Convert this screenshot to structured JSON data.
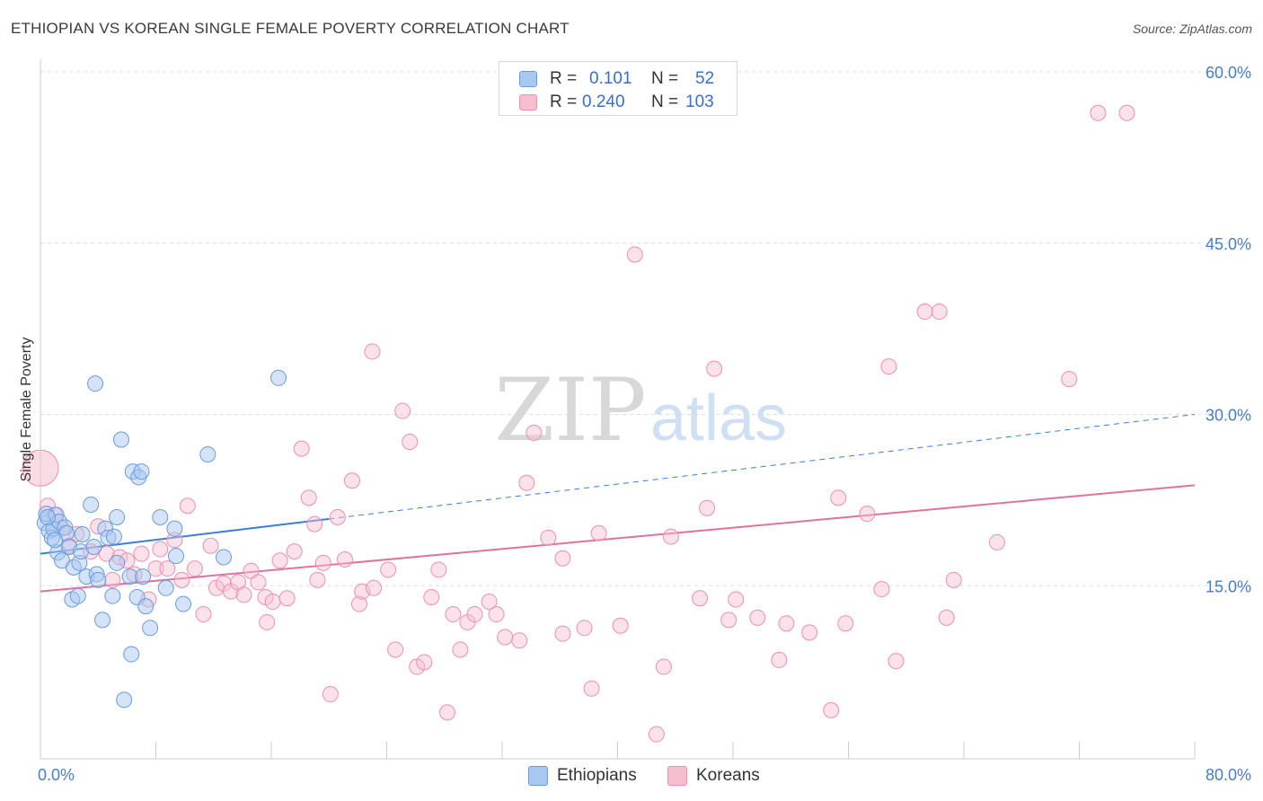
{
  "title": "ETHIOPIAN VS KOREAN SINGLE FEMALE POVERTY CORRELATION CHART",
  "source": "Source: ZipAtlas.com",
  "watermark": {
    "zip": "ZIP",
    "atlas": "atlas"
  },
  "stats": {
    "rows": [
      {
        "r_label": "R =",
        "r_value": "0.101",
        "n_label": "N =",
        "n_value": "52"
      },
      {
        "r_label": "R =",
        "r_value": "0.240",
        "n_label": "N =",
        "n_value": "103"
      }
    ]
  },
  "legend": {
    "items": [
      "Ethiopians",
      "Koreans"
    ]
  },
  "colors": {
    "ethiopians_fill": "#a9c8f0",
    "ethiopians_stroke": "#6a9be0",
    "ethiopians_line": "#3b7dd8",
    "koreans_fill": "#f6bfd0",
    "koreans_stroke": "#ec8fb0",
    "koreans_line": "#e2729d",
    "axis_text": "#4a7cc9",
    "grid": "#dddddd"
  },
  "chart_data": {
    "type": "scatter",
    "title": "ETHIOPIAN VS KOREAN SINGLE FEMALE POVERTY CORRELATION CHART",
    "xlabel": "",
    "ylabel": "Single Female Poverty",
    "xlim": [
      0,
      80
    ],
    "ylim": [
      0,
      60
    ],
    "x_tick_labels": [
      "0.0%",
      "80.0%"
    ],
    "y_tick_labels": [
      "15.0%",
      "30.0%",
      "45.0%",
      "60.0%"
    ],
    "y_ticks": [
      15,
      30,
      45,
      60
    ],
    "grid": true,
    "series": [
      {
        "name": "Ethiopians",
        "r": 0.101,
        "n": 52,
        "trend": {
          "x": [
            0,
            80
          ],
          "y": [
            17.8,
            30.0
          ],
          "solid_until_x": 20
        },
        "points": [
          [
            0.3,
            20.5
          ],
          [
            0.4,
            21.3
          ],
          [
            0.6,
            19.8
          ],
          [
            0.8,
            19.2
          ],
          [
            0.9,
            20.0
          ],
          [
            1.1,
            21.2
          ],
          [
            1.2,
            17.9
          ],
          [
            1.3,
            20.6
          ],
          [
            1.5,
            17.2
          ],
          [
            1.7,
            20.1
          ],
          [
            1.8,
            19.6
          ],
          [
            2.0,
            18.4
          ],
          [
            2.2,
            13.8
          ],
          [
            2.3,
            16.6
          ],
          [
            2.6,
            14.1
          ],
          [
            2.7,
            17.0
          ],
          [
            2.8,
            18.0
          ],
          [
            2.9,
            19.5
          ],
          [
            3.2,
            15.8
          ],
          [
            3.5,
            22.1
          ],
          [
            3.7,
            18.4
          ],
          [
            3.9,
            16.0
          ],
          [
            4.0,
            15.5
          ],
          [
            4.3,
            12.0
          ],
          [
            4.5,
            20.0
          ],
          [
            4.7,
            19.2
          ],
          [
            5.0,
            14.1
          ],
          [
            5.1,
            19.3
          ],
          [
            5.3,
            17.0
          ],
          [
            5.3,
            21.0
          ],
          [
            3.8,
            32.7
          ],
          [
            5.6,
            27.8
          ],
          [
            6.2,
            15.8
          ],
          [
            6.3,
            9.0
          ],
          [
            5.8,
            5.0
          ],
          [
            6.4,
            25.0
          ],
          [
            6.8,
            24.5
          ],
          [
            7.0,
            25.0
          ],
          [
            6.7,
            14.0
          ],
          [
            7.1,
            15.8
          ],
          [
            7.3,
            13.2
          ],
          [
            7.6,
            11.3
          ],
          [
            8.3,
            21.0
          ],
          [
            8.7,
            14.8
          ],
          [
            9.3,
            20.0
          ],
          [
            9.4,
            17.6
          ],
          [
            9.9,
            13.4
          ],
          [
            11.6,
            26.5
          ],
          [
            12.7,
            17.5
          ],
          [
            16.5,
            33.2
          ],
          [
            0.5,
            21.0
          ],
          [
            1.0,
            19.0
          ]
        ]
      },
      {
        "name": "Koreans",
        "r": 0.24,
        "n": 103,
        "trend": {
          "x": [
            0,
            80
          ],
          "y": [
            14.5,
            23.8
          ]
        },
        "points": [
          [
            0.5,
            22.0
          ],
          [
            1.0,
            21.2
          ],
          [
            1.5,
            20.0
          ],
          [
            2.0,
            18.5
          ],
          [
            2.5,
            19.5
          ],
          [
            3.5,
            18.0
          ],
          [
            4.0,
            20.2
          ],
          [
            4.6,
            17.8
          ],
          [
            5.0,
            15.5
          ],
          [
            5.5,
            17.5
          ],
          [
            6.0,
            17.2
          ],
          [
            6.5,
            16.0
          ],
          [
            7.0,
            17.8
          ],
          [
            7.5,
            13.8
          ],
          [
            8.0,
            16.5
          ],
          [
            8.3,
            18.2
          ],
          [
            8.8,
            16.5
          ],
          [
            9.3,
            19.0
          ],
          [
            9.8,
            15.5
          ],
          [
            10.2,
            22.0
          ],
          [
            10.7,
            16.5
          ],
          [
            11.3,
            12.5
          ],
          [
            11.8,
            18.5
          ],
          [
            12.2,
            14.8
          ],
          [
            12.7,
            15.2
          ],
          [
            13.2,
            14.5
          ],
          [
            13.7,
            15.3
          ],
          [
            14.1,
            14.2
          ],
          [
            14.6,
            16.3
          ],
          [
            15.1,
            15.3
          ],
          [
            15.6,
            14.0
          ],
          [
            15.7,
            11.8
          ],
          [
            16.1,
            13.6
          ],
          [
            16.6,
            17.2
          ],
          [
            17.1,
            13.9
          ],
          [
            17.6,
            18.0
          ],
          [
            18.1,
            27.0
          ],
          [
            18.6,
            22.7
          ],
          [
            19.0,
            20.4
          ],
          [
            19.2,
            15.5
          ],
          [
            19.6,
            17.0
          ],
          [
            20.1,
            5.5
          ],
          [
            20.6,
            21.0
          ],
          [
            21.1,
            17.3
          ],
          [
            21.6,
            24.2
          ],
          [
            22.1,
            13.4
          ],
          [
            22.3,
            14.5
          ],
          [
            23.1,
            14.8
          ],
          [
            23.0,
            35.5
          ],
          [
            24.1,
            16.4
          ],
          [
            24.6,
            9.4
          ],
          [
            25.1,
            30.3
          ],
          [
            25.6,
            27.6
          ],
          [
            26.1,
            7.9
          ],
          [
            26.6,
            8.3
          ],
          [
            27.1,
            14.0
          ],
          [
            27.6,
            16.4
          ],
          [
            28.2,
            3.9
          ],
          [
            28.6,
            12.5
          ],
          [
            29.1,
            9.4
          ],
          [
            29.6,
            11.8
          ],
          [
            30.1,
            12.5
          ],
          [
            31.1,
            13.6
          ],
          [
            31.6,
            12.5
          ],
          [
            32.2,
            10.5
          ],
          [
            33.2,
            10.2
          ],
          [
            34.2,
            28.4
          ],
          [
            33.7,
            24.0
          ],
          [
            35.2,
            19.2
          ],
          [
            36.2,
            17.4
          ],
          [
            36.2,
            10.8
          ],
          [
            37.7,
            11.3
          ],
          [
            38.2,
            6.0
          ],
          [
            38.7,
            19.6
          ],
          [
            40.2,
            11.5
          ],
          [
            41.2,
            44.0
          ],
          [
            42.7,
            2.0
          ],
          [
            43.2,
            7.9
          ],
          [
            43.7,
            19.3
          ],
          [
            45.7,
            13.9
          ],
          [
            46.2,
            21.8
          ],
          [
            46.7,
            34.0
          ],
          [
            47.7,
            12.0
          ],
          [
            48.2,
            13.8
          ],
          [
            49.7,
            12.2
          ],
          [
            51.2,
            8.5
          ],
          [
            51.7,
            11.7
          ],
          [
            53.3,
            10.9
          ],
          [
            54.8,
            4.1
          ],
          [
            55.3,
            22.7
          ],
          [
            55.8,
            11.7
          ],
          [
            57.3,
            21.3
          ],
          [
            58.3,
            14.7
          ],
          [
            58.8,
            34.2
          ],
          [
            59.3,
            8.4
          ],
          [
            61.3,
            39.0
          ],
          [
            62.3,
            39.0
          ],
          [
            62.8,
            12.2
          ],
          [
            63.3,
            15.5
          ],
          [
            66.3,
            18.8
          ],
          [
            71.3,
            33.1
          ],
          [
            73.3,
            56.4
          ],
          [
            75.3,
            56.4
          ]
        ]
      }
    ]
  }
}
